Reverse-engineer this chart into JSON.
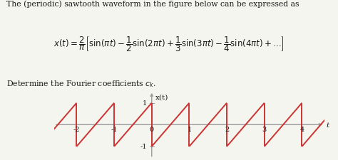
{
  "title_text": "The (periodic) sawtooth waveform in the figure below can be expressed as",
  "subtitle": "Determine the Fourier coefficients $c_k$.",
  "xlabel": "t",
  "ylabel": "x(t)",
  "xlim": [
    -2.6,
    4.6
  ],
  "ylim": [
    -1.55,
    1.55
  ],
  "xticks": [
    -2,
    -1,
    0,
    1,
    2,
    3,
    4
  ],
  "ytick_pos": [
    1,
    -1
  ],
  "ytick_labels": [
    "1",
    "-1"
  ],
  "sawtooth_color": "#cc3333",
  "axis_color": "#999999",
  "line_width": 1.4,
  "bg_color": "#f5f5f0",
  "text_color": "#1a1a1a",
  "title_fontsize": 7.8,
  "eq_fontsize": 8.5,
  "subtitle_fontsize": 7.8,
  "tick_fontsize": 7.0,
  "axis_label_fontsize": 7.5
}
